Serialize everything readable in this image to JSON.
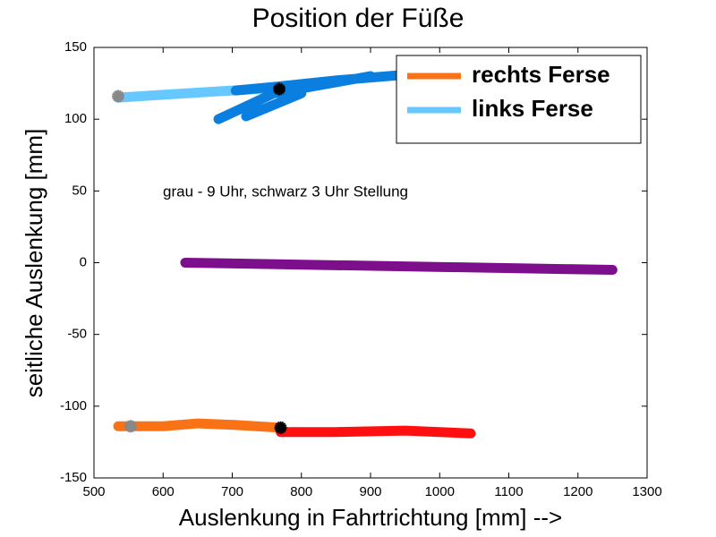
{
  "chart_data": {
    "type": "line",
    "title": "Position der Füße",
    "xlabel": "Auslenkung in Fahrtrichtung [mm] -->",
    "ylabel": "seitliche Auslenkung [mm]",
    "annotation": "grau - 9 Uhr, schwarz 3 Uhr Stellung",
    "xlim": [
      500,
      1300
    ],
    "xticks": [
      500,
      600,
      700,
      800,
      900,
      1000,
      1100,
      1200,
      1300
    ],
    "ylim": [
      -150,
      150
    ],
    "yticks": [
      -150,
      -100,
      -50,
      0,
      50,
      100,
      150
    ],
    "legend": "upper right",
    "series": [
      {
        "name": "rechts Ferse",
        "color": "#f97316",
        "x": [
          535,
          600,
          650,
          700,
          770
        ],
        "values": [
          -114,
          -114,
          -112,
          -113,
          -115
        ]
      },
      {
        "name": "links Ferse",
        "color": "#66c8ff",
        "x": [
          535,
          600,
          700,
          770
        ],
        "values": [
          115,
          117,
          120,
          122
        ]
      },
      {
        "color": "#ff0f0f",
        "x": [
          770,
          850,
          950,
          1045
        ],
        "values": [
          -118,
          -118,
          -117,
          -119
        ]
      },
      {
        "color": "#0a7fe0",
        "x": [
          705,
          770,
          850,
          950,
          null,
          680,
          760,
          900,
          null,
          720,
          800
        ],
        "values": [
          120,
          123,
          127,
          131,
          null,
          100,
          118,
          130,
          null,
          102,
          118
        ]
      },
      {
        "color": "#7d0f8c",
        "x": [
          632,
          1250
        ],
        "values": [
          0,
          -5
        ]
      }
    ],
    "markers": [
      {
        "color": "#888888",
        "x": [
          535,
          553
        ],
        "values": [
          116,
          -114
        ]
      },
      {
        "color": "#000000",
        "x": [
          768,
          770
        ],
        "values": [
          121,
          -115
        ]
      }
    ]
  }
}
